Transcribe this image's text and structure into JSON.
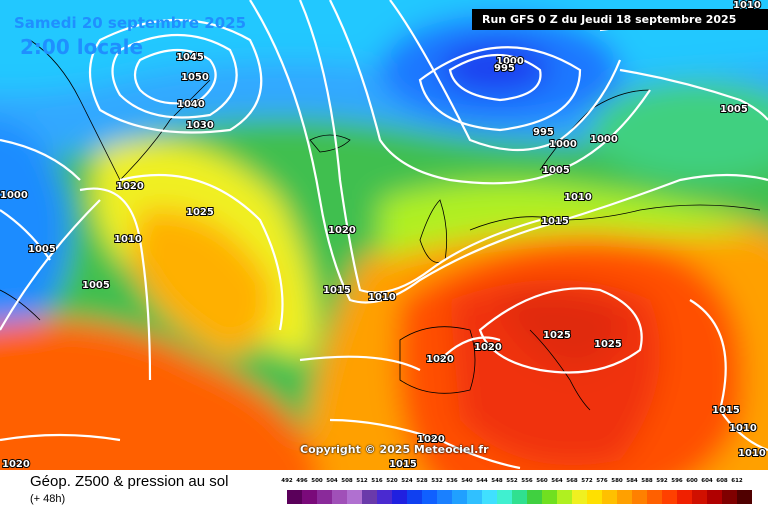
{
  "header": {
    "date": "Samedi 20 septembre 2025",
    "time": "2:00 locale",
    "run": "Run GFS 0 Z du Jeudi 18 septembre 2025"
  },
  "footer": {
    "title": "Géop. Z500 & pression au sol",
    "subtitle": "(+ 48h)",
    "copyright": "Copyright © 2025 Meteociel.fr"
  },
  "legend": {
    "ticks": [
      "492",
      "496",
      "500",
      "504",
      "508",
      "512",
      "516",
      "520",
      "524",
      "528",
      "532",
      "536",
      "540",
      "544",
      "548",
      "552",
      "556",
      "560",
      "564",
      "568",
      "572",
      "576",
      "580",
      "584",
      "588",
      "592",
      "596",
      "600",
      "604",
      "608",
      "612"
    ],
    "colors": [
      "#5a005a",
      "#7a0a7a",
      "#8a2a9a",
      "#a050b8",
      "#b070d0",
      "#6a3aaa",
      "#4a2ad0",
      "#2020e0",
      "#1040f0",
      "#1060ff",
      "#1a80ff",
      "#20a0ff",
      "#30c0ff",
      "#40e0ff",
      "#40f0d0",
      "#30e090",
      "#40d040",
      "#70e020",
      "#b0f020",
      "#f0f020",
      "#ffe000",
      "#ffc000",
      "#ffa000",
      "#ff8000",
      "#ff6000",
      "#ff4000",
      "#f02000",
      "#d01000",
      "#b00000",
      "#800000",
      "#500000"
    ]
  },
  "isobars": [
    {
      "label": "1045"
    },
    {
      "label": "1050"
    },
    {
      "label": "1040"
    },
    {
      "label": "1030"
    },
    {
      "label": "1020"
    },
    {
      "label": "1025"
    },
    {
      "label": "1010"
    },
    {
      "label": "1005"
    },
    {
      "label": "1000"
    },
    {
      "label": "1005"
    },
    {
      "label": "1020"
    },
    {
      "label": "1015"
    },
    {
      "label": "1010"
    },
    {
      "label": "1000"
    },
    {
      "label": "995"
    },
    {
      "label": "995"
    },
    {
      "label": "1000"
    },
    {
      "label": "1000"
    },
    {
      "label": "1005"
    },
    {
      "label": "1010"
    },
    {
      "label": "1015"
    },
    {
      "label": "1005"
    },
    {
      "label": "1010"
    },
    {
      "label": "1025"
    },
    {
      "label": "1025"
    },
    {
      "label": "1020"
    },
    {
      "label": "1020"
    },
    {
      "label": "1020"
    },
    {
      "label": "1015"
    },
    {
      "label": "1015"
    },
    {
      "label": "1010"
    },
    {
      "label": "1010"
    },
    {
      "label": "1020"
    }
  ],
  "colors": {
    "header_text": "#1f8fff",
    "run_bg": "#000000",
    "isobar": "#ffffff"
  }
}
